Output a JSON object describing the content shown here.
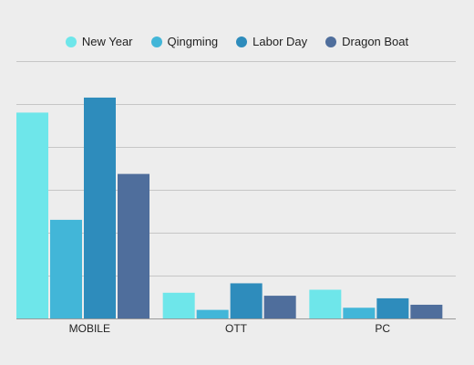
{
  "chart_data": {
    "type": "bar",
    "title": "",
    "xlabel": "",
    "ylabel": "",
    "categories": [
      "MOBILE",
      "OTT",
      "PC"
    ],
    "series": [
      {
        "name": "New Year",
        "color": "#6ee6ea",
        "values": [
          48,
          6,
          6.7
        ]
      },
      {
        "name": "Qingming",
        "color": "#42b6d8",
        "values": [
          23,
          2,
          2.5
        ]
      },
      {
        "name": "Labor Day",
        "color": "#2e8cbc",
        "values": [
          51.5,
          8.2,
          4.7
        ]
      },
      {
        "name": "Dragon Boat",
        "color": "#4f6e9c",
        "values": [
          33.7,
          5.3,
          3.2
        ]
      }
    ],
    "ylim": [
      0,
      60
    ],
    "yticks": [
      0,
      10,
      20,
      30,
      40,
      50,
      60
    ],
    "show_y_tick_labels": false,
    "grid": true,
    "legend_position": "top-center"
  }
}
